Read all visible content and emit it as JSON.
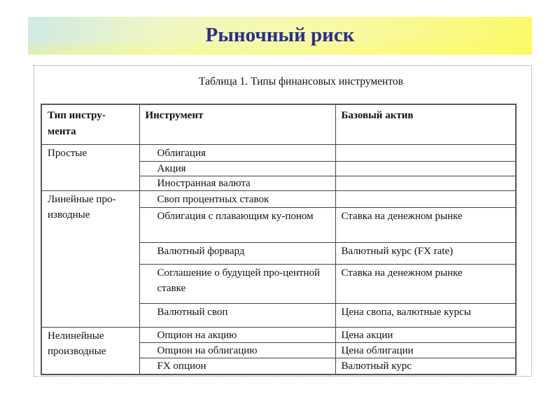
{
  "slide": {
    "title": "Рыночный риск"
  },
  "table": {
    "caption": "Таблица 1. Типы финансовых инструментов",
    "headers": [
      "Тип инстру-мента",
      "Инструмент",
      "Базовый актив"
    ],
    "groups": [
      {
        "type": "Простые",
        "rows": [
          {
            "instrument": "Облигация",
            "asset": ""
          },
          {
            "instrument": "Акция",
            "asset": ""
          },
          {
            "instrument": "Иностранная валюта",
            "asset": ""
          }
        ]
      },
      {
        "type": "Линейные про-изводные",
        "rows": [
          {
            "instrument": "Своп процентных ставок",
            "asset": ""
          },
          {
            "instrument": "Облигация с плавающим ку-поном",
            "asset": "Ставка на денежном рынке"
          },
          {
            "instrument": "Валютный форвард",
            "asset": "Валютный курс (FX rate)"
          },
          {
            "instrument": "Соглашение о будущей про-центной ставке",
            "asset": "Ставка на денежном рынке"
          },
          {
            "instrument": "Валютный своп",
            "asset": "Цена свопа, валютные курсы"
          }
        ]
      },
      {
        "type": "Нелинейные производные",
        "rows": [
          {
            "instrument": "Опцион на акцию",
            "asset": "Цена акции"
          },
          {
            "instrument": "Опцион на облигацию",
            "asset": "Цена облигации"
          },
          {
            "instrument": "FX опцион",
            "asset": "Валютный курс"
          }
        ]
      }
    ]
  },
  "colors": {
    "title": "#2b2f86",
    "banner_left": "#cfe9e4",
    "banner_right": "#fbf96a"
  }
}
